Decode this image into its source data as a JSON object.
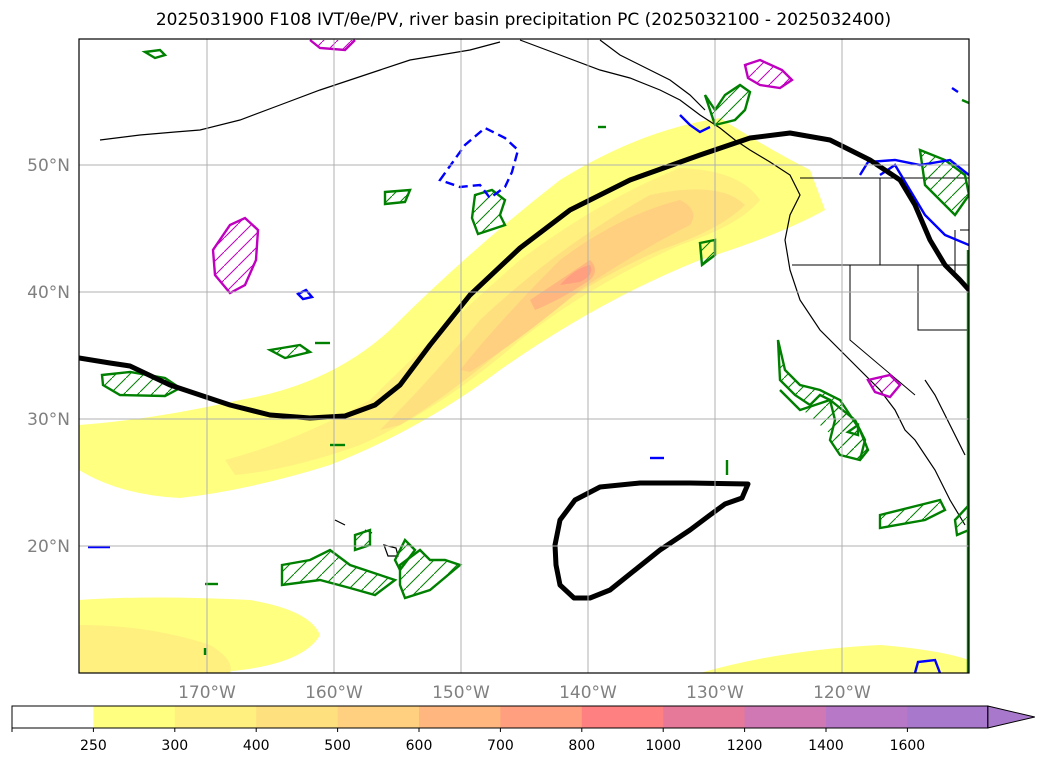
{
  "title": "2025031900 F108 IVT/θe/PV, river basin precipitation PC (2025032100 - 2025032400)",
  "map": {
    "lat_labels": [
      {
        "lat": 50,
        "text": "50°N"
      },
      {
        "lat": 40,
        "text": "40°N"
      },
      {
        "lat": 30,
        "text": "30°N"
      },
      {
        "lat": 20,
        "text": "20°N"
      }
    ],
    "lon_labels": [
      {
        "lon": -170,
        "text": "170°W"
      },
      {
        "lon": -160,
        "text": "160°W"
      },
      {
        "lon": -150,
        "text": "150°W"
      },
      {
        "lon": -140,
        "text": "140°W"
      },
      {
        "lon": -130,
        "text": "130°W"
      },
      {
        "lon": -120,
        "text": "120°W"
      }
    ],
    "extent": {
      "lon_min": -180,
      "lon_max": -110,
      "lat_min": 10,
      "lat_max": 60
    },
    "gridlines": true,
    "label_color": "#808080"
  },
  "colorbar": {
    "ticks": [
      "250",
      "300",
      "400",
      "500",
      "600",
      "700",
      "800",
      "1000",
      "1200",
      "1400",
      "1600"
    ],
    "colors": [
      "#ffffff",
      "#ffff80",
      "#fff07f",
      "#ffe07f",
      "#ffd07f",
      "#ffb77f",
      "#ff9f7f",
      "#ff8080",
      "#e6789a",
      "#cf78b3",
      "#b878c8",
      "#a878cc"
    ],
    "extend": "max"
  },
  "colors": {
    "theta_e_contour": "#000000",
    "pv_positive": "#008000",
    "pv_magenta": "#bf00bf",
    "pv_blue": "#0000ff",
    "coastline": "#000000"
  }
}
